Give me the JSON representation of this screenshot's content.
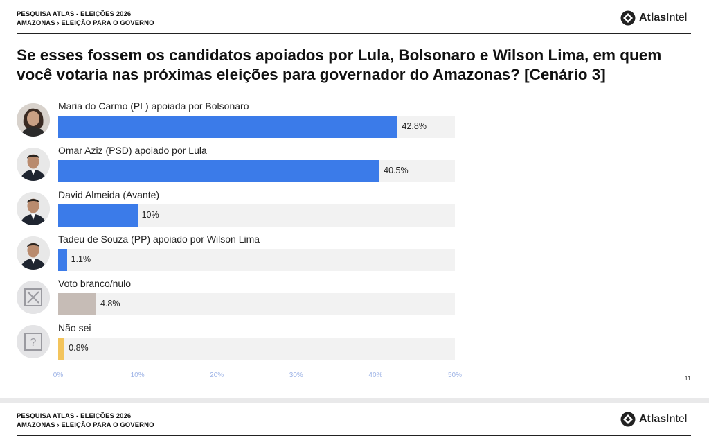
{
  "header": {
    "line1": "PESQUISA ATLAS - ELEIÇÕES 2026",
    "line2": "AMAZONAS › ELEIÇÃO PARA O GOVERNO",
    "logo_bold": "Atlas",
    "logo_regular": "Intel"
  },
  "question": "Se esses fossem os candidatos apoiados por Lula, Bolsonaro e Wilson Lima, em quem você votaria nas próximas eleições para governador do Amazonas? [Cenário 3]",
  "page_number": "11",
  "footer_header": {
    "line1": "PESQUISA ATLAS - ELEIÇÕES 2026",
    "line2": "AMAZONAS › ELEIÇÃO PARA O GOVERNO",
    "logo_bold": "Atlas",
    "logo_regular": "Intel"
  },
  "colors": {
    "candidate": "#3b7be9",
    "blank": "#c6bcb6",
    "dont_know": "#f3c45c",
    "track": "#f2f2f2"
  },
  "chart_data": {
    "type": "bar",
    "orientation": "horizontal",
    "xlim": [
      0,
      50
    ],
    "ticks": [
      "0%",
      "10%",
      "20%",
      "30%",
      "40%",
      "50%"
    ],
    "tick_values": [
      0,
      10,
      20,
      30,
      40,
      50
    ],
    "categories": [
      "Maria do Carmo (PL) apoiada por Bolsonaro",
      "Omar Aziz (PSD) apoiado por Lula",
      "David Almeida (Avante)",
      "Tadeu de Souza (PP) apoiado por Wilson Lima",
      "Voto branco/nulo",
      "Não sei"
    ],
    "values": [
      42.8,
      40.5,
      10,
      1.1,
      4.8,
      0.8
    ],
    "value_labels": [
      "42.8%",
      "40.5%",
      "10%",
      "1.1%",
      "4.8%",
      "0.8%"
    ],
    "bar_colors": [
      "#3b7be9",
      "#3b7be9",
      "#3b7be9",
      "#3b7be9",
      "#c6bcb6",
      "#f3c45c"
    ],
    "icons": [
      "avatar-woman-icon",
      "avatar-man-icon",
      "avatar-man-icon",
      "avatar-man-icon",
      "blank-vote-icon",
      "question-mark-icon"
    ]
  }
}
